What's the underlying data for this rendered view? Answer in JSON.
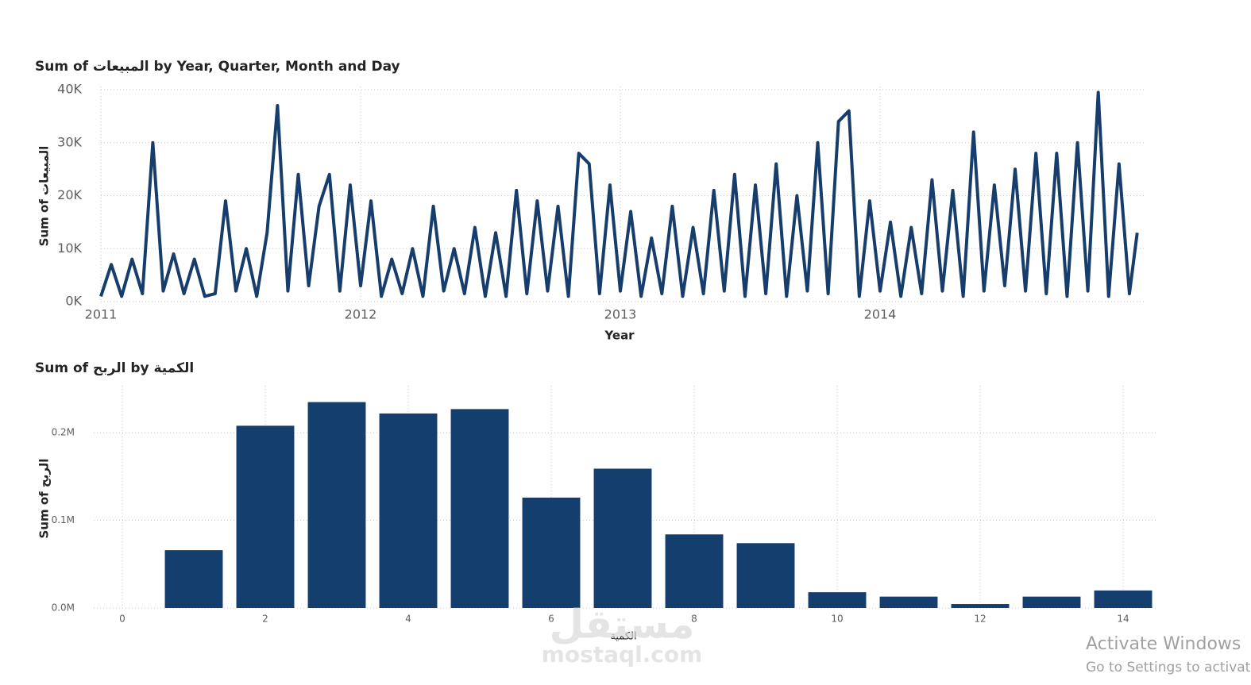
{
  "chart_data": [
    {
      "type": "line",
      "title": "Sum of المبيعات by Year, Quarter, Month and Day",
      "x_label": "Year",
      "y_label": "Sum of المبيعات",
      "color": "#163d6b",
      "grid": true,
      "xlim": [
        2011,
        2015
      ],
      "xticks": [
        2011,
        2012,
        2013,
        2014
      ],
      "ylim": [
        0,
        40000
      ],
      "yticks": [
        {
          "value": 0,
          "label": "0K"
        },
        {
          "value": 10000,
          "label": "10K"
        },
        {
          "value": 20000,
          "label": "20K"
        },
        {
          "value": 30000,
          "label": "30K"
        },
        {
          "value": 40000,
          "label": "40K"
        }
      ],
      "x": [
        2011.0,
        2011.04,
        2011.08,
        2011.12,
        2011.16,
        2011.2,
        2011.24,
        2011.28,
        2011.32,
        2011.36,
        2011.4,
        2011.44,
        2011.48,
        2011.52,
        2011.56,
        2011.6,
        2011.64,
        2011.68,
        2011.72,
        2011.76,
        2011.8,
        2011.84,
        2011.88,
        2011.92,
        2011.96,
        2012.0,
        2012.04,
        2012.08,
        2012.12,
        2012.16,
        2012.2,
        2012.24,
        2012.28,
        2012.32,
        2012.36,
        2012.4,
        2012.44,
        2012.48,
        2012.52,
        2012.56,
        2012.6,
        2012.64,
        2012.68,
        2012.72,
        2012.76,
        2012.8,
        2012.84,
        2012.88,
        2012.92,
        2012.96,
        2013.0,
        2013.04,
        2013.08,
        2013.12,
        2013.16,
        2013.2,
        2013.24,
        2013.28,
        2013.32,
        2013.36,
        2013.4,
        2013.44,
        2013.48,
        2013.52,
        2013.56,
        2013.6,
        2013.64,
        2013.68,
        2013.72,
        2013.76,
        2013.8,
        2013.84,
        2013.88,
        2013.92,
        2013.96,
        2014.0,
        2014.04,
        2014.08,
        2014.12,
        2014.16,
        2014.2,
        2014.24,
        2014.28,
        2014.32,
        2014.36,
        2014.4,
        2014.44,
        2014.48,
        2014.52,
        2014.56,
        2014.6,
        2014.64,
        2014.68,
        2014.72,
        2014.76,
        2014.8,
        2014.84,
        2014.88,
        2014.92,
        2014.96,
        2014.99
      ],
      "values": [
        1000,
        7000,
        1000,
        8000,
        1500,
        30000,
        2000,
        9000,
        1500,
        8000,
        1000,
        1500,
        19000,
        2000,
        10000,
        1000,
        13000,
        37000,
        2000,
        24000,
        3000,
        18000,
        24000,
        2000,
        22000,
        3000,
        19000,
        1000,
        8000,
        1500,
        10000,
        1000,
        18000,
        2000,
        10000,
        1500,
        14000,
        1000,
        13000,
        1000,
        21000,
        1500,
        19000,
        2000,
        18000,
        1000,
        28000,
        26000,
        1500,
        22000,
        2000,
        17000,
        1000,
        12000,
        1500,
        18000,
        1000,
        14000,
        1500,
        21000,
        2000,
        24000,
        1000,
        22000,
        1500,
        26000,
        1000,
        20000,
        2000,
        30000,
        1500,
        34000,
        36000,
        1000,
        19000,
        2000,
        15000,
        1000,
        14000,
        1500,
        23000,
        2000,
        21000,
        1000,
        32000,
        2000,
        22000,
        3000,
        25000,
        2000,
        28000,
        1500,
        28000,
        1000,
        30000,
        2000,
        39500,
        1000,
        26000,
        1500,
        13000
      ]
    },
    {
      "type": "bar",
      "title": "Sum of الربح by الكمية",
      "x_label": "الكمية",
      "y_label": "Sum of الربح",
      "color": "#143e6e",
      "grid": true,
      "xlim": [
        -0.4,
        14.4
      ],
      "xticks": [
        0,
        2,
        4,
        6,
        8,
        10,
        12,
        14
      ],
      "ylim": [
        0,
        250000
      ],
      "yticks": [
        {
          "value": 0,
          "label": "0.0M"
        },
        {
          "value": 100000,
          "label": "0.1M"
        },
        {
          "value": 200000,
          "label": "0.2M"
        }
      ],
      "x": [
        1,
        2,
        3,
        4,
        5,
        6,
        7,
        8,
        9,
        10,
        11,
        12,
        13,
        14
      ],
      "values": [
        66000,
        208000,
        235000,
        222000,
        227000,
        126000,
        159000,
        84000,
        74000,
        18000,
        13000,
        4500,
        13000,
        20000
      ]
    }
  ],
  "overlay": {
    "watermark_ar": "مستقل",
    "watermark": "mostaql.com",
    "activate_title": "Activate Windows",
    "activate_sub": "Go to Settings to activate"
  }
}
